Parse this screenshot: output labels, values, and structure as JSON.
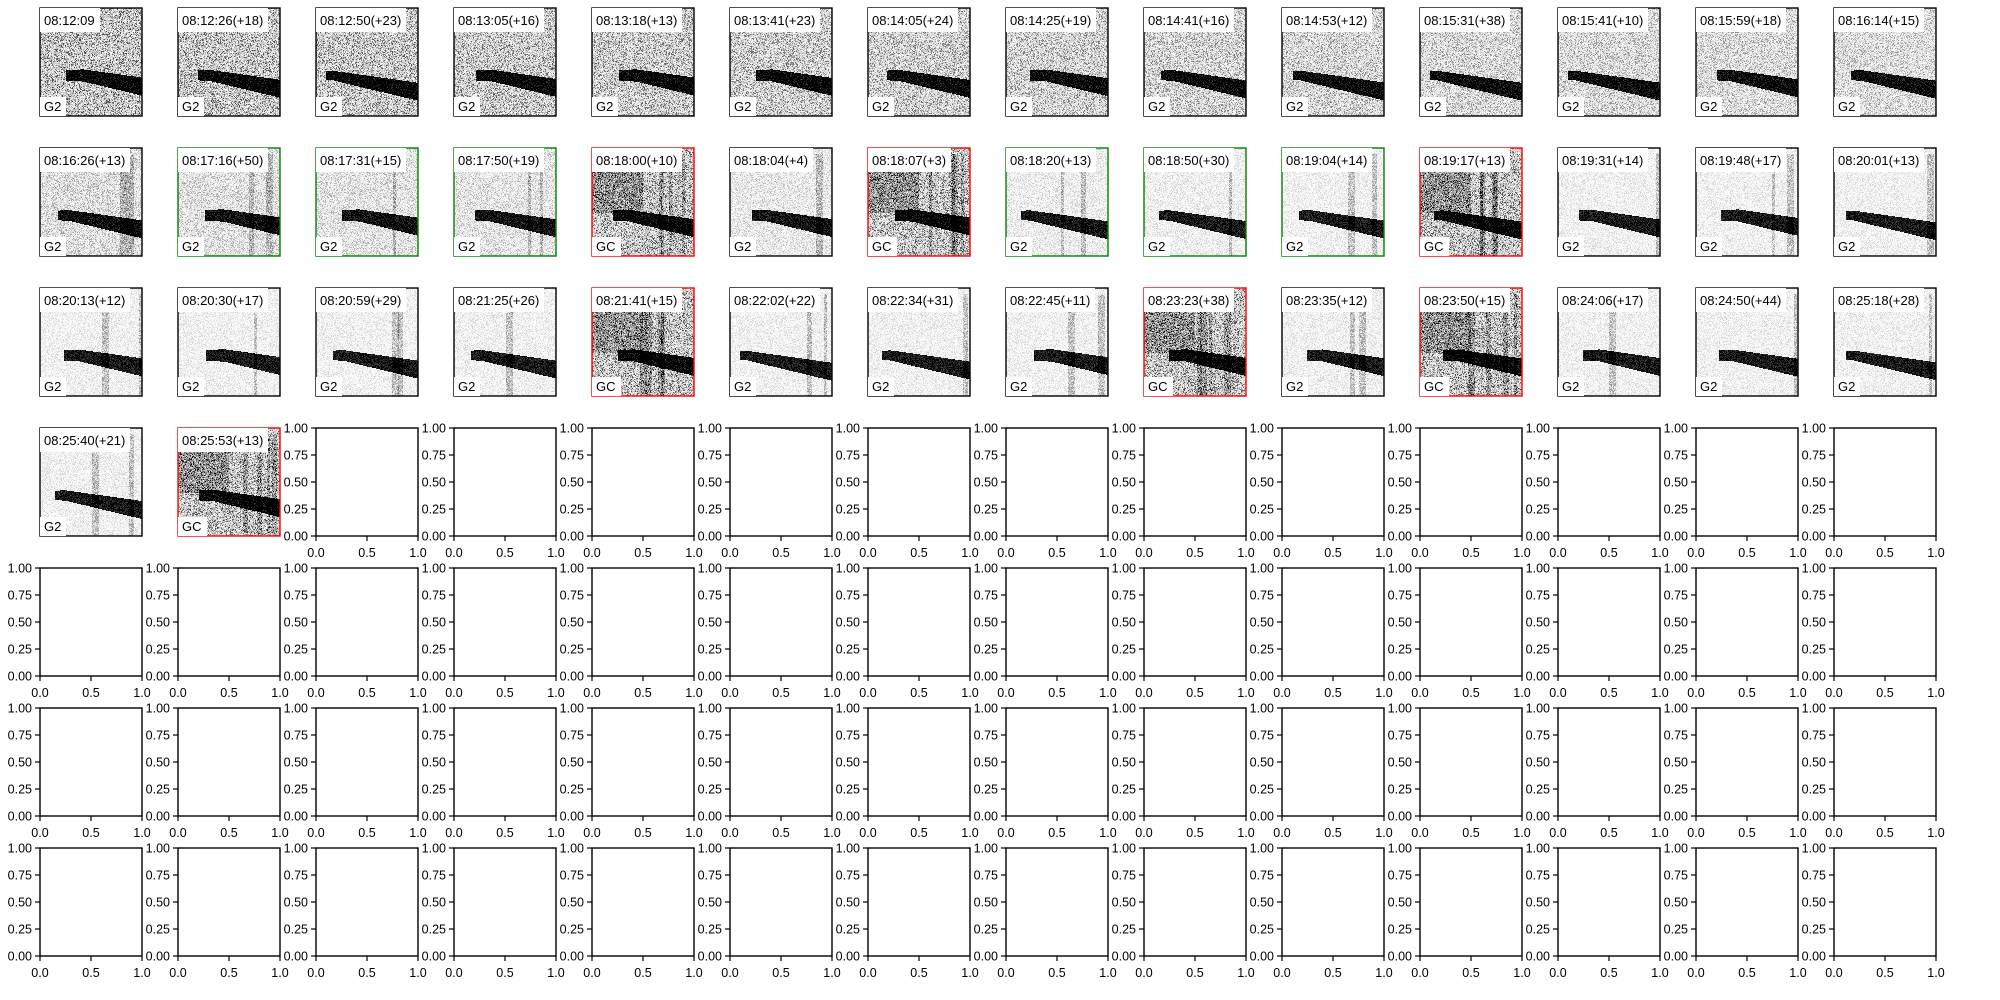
{
  "grid": {
    "rows": 7,
    "cols": 14
  },
  "colors": {
    "default": "#000000",
    "green": "#008000",
    "red": "#ff0000"
  },
  "panels": [
    {
      "time": "08:12:09",
      "cls": "G2",
      "border": "default"
    },
    {
      "time": "08:12:26(+18)",
      "cls": "G2",
      "border": "default"
    },
    {
      "time": "08:12:50(+23)",
      "cls": "G2",
      "border": "default"
    },
    {
      "time": "08:13:05(+16)",
      "cls": "G2",
      "border": "default"
    },
    {
      "time": "08:13:18(+13)",
      "cls": "G2",
      "border": "default"
    },
    {
      "time": "08:13:41(+23)",
      "cls": "G2",
      "border": "default"
    },
    {
      "time": "08:14:05(+24)",
      "cls": "G2",
      "border": "default"
    },
    {
      "time": "08:14:25(+19)",
      "cls": "G2",
      "border": "default"
    },
    {
      "time": "08:14:41(+16)",
      "cls": "G2",
      "border": "default"
    },
    {
      "time": "08:14:53(+12)",
      "cls": "G2",
      "border": "default"
    },
    {
      "time": "08:15:31(+38)",
      "cls": "G2",
      "border": "default"
    },
    {
      "time": "08:15:41(+10)",
      "cls": "G2",
      "border": "default"
    },
    {
      "time": "08:15:59(+18)",
      "cls": "G2",
      "border": "default"
    },
    {
      "time": "08:16:14(+15)",
      "cls": "G2",
      "border": "default"
    },
    {
      "time": "08:16:26(+13)",
      "cls": "G2",
      "border": "default"
    },
    {
      "time": "08:17:16(+50)",
      "cls": "G2",
      "border": "green"
    },
    {
      "time": "08:17:31(+15)",
      "cls": "G2",
      "border": "green"
    },
    {
      "time": "08:17:50(+19)",
      "cls": "G2",
      "border": "green"
    },
    {
      "time": "08:18:00(+10)",
      "cls": "GC",
      "border": "red"
    },
    {
      "time": "08:18:04(+4)",
      "cls": "G2",
      "border": "default"
    },
    {
      "time": "08:18:07(+3)",
      "cls": "GC",
      "border": "red"
    },
    {
      "time": "08:18:20(+13)",
      "cls": "G2",
      "border": "green"
    },
    {
      "time": "08:18:50(+30)",
      "cls": "G2",
      "border": "green"
    },
    {
      "time": "08:19:04(+14)",
      "cls": "G2",
      "border": "green"
    },
    {
      "time": "08:19:17(+13)",
      "cls": "GC",
      "border": "red"
    },
    {
      "time": "08:19:31(+14)",
      "cls": "G2",
      "border": "default"
    },
    {
      "time": "08:19:48(+17)",
      "cls": "G2",
      "border": "default"
    },
    {
      "time": "08:20:01(+13)",
      "cls": "G2",
      "border": "default"
    },
    {
      "time": "08:20:13(+12)",
      "cls": "G2",
      "border": "default"
    },
    {
      "time": "08:20:30(+17)",
      "cls": "G2",
      "border": "default"
    },
    {
      "time": "08:20:59(+29)",
      "cls": "G2",
      "border": "default"
    },
    {
      "time": "08:21:25(+26)",
      "cls": "G2",
      "border": "default"
    },
    {
      "time": "08:21:41(+15)",
      "cls": "GC",
      "border": "red"
    },
    {
      "time": "08:22:02(+22)",
      "cls": "G2",
      "border": "default"
    },
    {
      "time": "08:22:34(+31)",
      "cls": "G2",
      "border": "default"
    },
    {
      "time": "08:22:45(+11)",
      "cls": "G2",
      "border": "default"
    },
    {
      "time": "08:23:23(+38)",
      "cls": "GC",
      "border": "red"
    },
    {
      "time": "08:23:35(+12)",
      "cls": "G2",
      "border": "default"
    },
    {
      "time": "08:23:50(+15)",
      "cls": "GC",
      "border": "red"
    },
    {
      "time": "08:24:06(+17)",
      "cls": "G2",
      "border": "default"
    },
    {
      "time": "08:24:50(+44)",
      "cls": "G2",
      "border": "default"
    },
    {
      "time": "08:25:18(+28)",
      "cls": "G2",
      "border": "default"
    },
    {
      "time": "08:25:40(+21)",
      "cls": "G2",
      "border": "default"
    },
    {
      "time": "08:25:53(+13)",
      "cls": "GC",
      "border": "red"
    }
  ],
  "empty_axes": {
    "xlim": [
      0,
      1
    ],
    "ylim": [
      0,
      1
    ],
    "xticks": [
      "0.0",
      "0.5",
      "1.0"
    ],
    "yticks": [
      "0.00",
      "0.25",
      "0.50",
      "0.75",
      "1.00"
    ]
  },
  "chart_data": {
    "type": "heatmap",
    "description_kind": "grid of spectrogram thumbnails",
    "colormap": "gray_r"
  }
}
